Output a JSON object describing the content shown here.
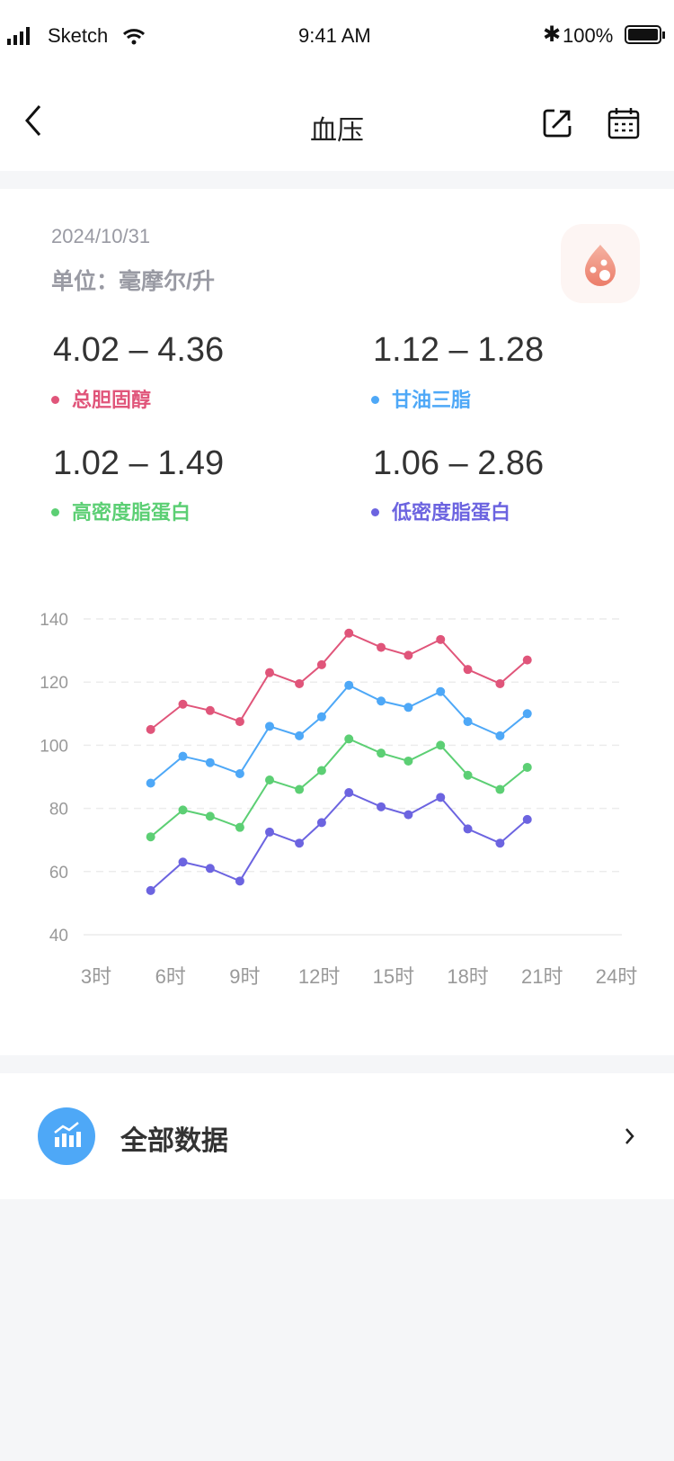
{
  "status_bar": {
    "carrier": "Sketch",
    "time": "9:41 AM",
    "battery": "100%"
  },
  "header": {
    "title": "血压"
  },
  "summary": {
    "date": "2024/10/31",
    "unit": "单位：毫摩尔/升",
    "metrics": [
      {
        "range": "4.02 – 4.36",
        "label": "总胆固醇",
        "color": "#e0557a"
      },
      {
        "range": "1.12 – 1.28",
        "label": "甘油三脂",
        "color": "#4ea8f7"
      },
      {
        "range": "1.02 – 1.49",
        "label": "高密度脂蛋白",
        "color": "#5ccf74"
      },
      {
        "range": "1.06 – 2.86",
        "label": "低密度脂蛋白",
        "color": "#6c64e0"
      }
    ]
  },
  "chart_data": {
    "type": "line",
    "xlim": [
      3,
      24
    ],
    "ylim": [
      40,
      140
    ],
    "x_ticks": [
      3,
      6,
      9,
      12,
      15,
      18,
      21,
      24
    ],
    "x_tick_labels": [
      "3时",
      "6时",
      "9时",
      "12时",
      "15时",
      "18时",
      "21时",
      "24时"
    ],
    "y_ticks": [
      40,
      60,
      80,
      100,
      120,
      140
    ],
    "x": [
      5.2,
      6.5,
      7.6,
      8.8,
      10,
      11.2,
      12.1,
      13.2,
      14.5,
      15.6,
      16.9,
      18,
      19.3,
      20.4
    ],
    "series": [
      {
        "name": "总胆固醇",
        "color": "#e0557a",
        "values": [
          105,
          113,
          111,
          107.5,
          123,
          119.5,
          125.5,
          135.5,
          131,
          128.5,
          133.5,
          124,
          119.5,
          127
        ]
      },
      {
        "name": "甘油三脂",
        "color": "#4ea8f7",
        "values": [
          88,
          96.5,
          94.5,
          91,
          106,
          103,
          109,
          119,
          114,
          112,
          117,
          107.5,
          103,
          110
        ]
      },
      {
        "name": "高密度脂蛋白",
        "color": "#5ccf74",
        "values": [
          71,
          79.5,
          77.5,
          74,
          89,
          86,
          92,
          102,
          97.5,
          95,
          100,
          90.5,
          86,
          93
        ]
      },
      {
        "name": "低密度脂蛋白",
        "color": "#6c64e0",
        "values": [
          54,
          63,
          61,
          57,
          72.5,
          69,
          75.5,
          85,
          80.5,
          78,
          83.5,
          73.5,
          69,
          76.5
        ]
      }
    ]
  },
  "all_data": {
    "label": "全部数据"
  }
}
